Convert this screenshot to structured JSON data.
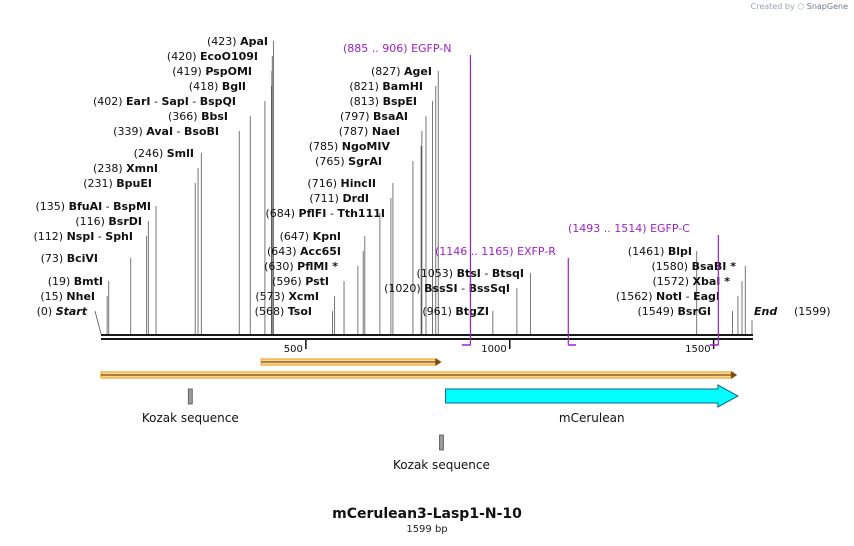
{
  "watermark": {
    "prefix": "Created by",
    "brand": "SnapGene"
  },
  "map_title": "mCerulean3-Lasp1-N-10",
  "map_size": "1599 bp",
  "sequence_length": 1599,
  "left_labels": [
    {
      "pos": "(423)",
      "name": "ApaI",
      "at": 423
    },
    {
      "pos": "(420)",
      "name": "EcoO109I",
      "at": 420
    },
    {
      "pos": "(419)",
      "name": "PspOMI",
      "at": 419
    },
    {
      "pos": "(418)",
      "name": "BglI",
      "at": 418
    },
    {
      "pos": "(402)",
      "name": "EarI",
      "name2": "SapI",
      "name3": "BspQI",
      "at": 402
    },
    {
      "pos": "(366)",
      "name": "BbsI",
      "at": 366
    },
    {
      "pos": "(339)",
      "name": "AvaI",
      "name2": "BsoBI",
      "at": 339
    },
    {
      "pos": "(246)",
      "name": "SmlI",
      "at": 246
    },
    {
      "pos": "(238)",
      "name": "XmnI",
      "at": 238
    },
    {
      "pos": "(231)",
      "name": "BpuEI",
      "at": 231
    },
    {
      "pos": "(135)",
      "name": "BfuAI",
      "name2": "BspMI",
      "at": 135
    },
    {
      "pos": "(116)",
      "name": "BsrDI",
      "at": 116
    },
    {
      "pos": "(112)",
      "name": "NspI",
      "name2": "SphI",
      "at": 112
    },
    {
      "pos": "(73)",
      "name": "BciVI",
      "at": 73
    },
    {
      "pos": "(19)",
      "name": "BmtI",
      "at": 19
    },
    {
      "pos": "(15)",
      "name": "NheI",
      "at": 15
    },
    {
      "pos": "(0)",
      "name": "Start",
      "at": 0
    }
  ],
  "middle_labels": [
    {
      "pos": "(684)",
      "name": "PflFI",
      "name2": "Tth111I",
      "at": 684
    },
    {
      "pos": "(647)",
      "name": "KpnI",
      "at": 647
    },
    {
      "pos": "(643)",
      "name": "Acc65I",
      "at": 643
    },
    {
      "pos": "(630)",
      "name": "PflMI",
      "star": "*",
      "at": 630
    },
    {
      "pos": "(596)",
      "name": "PstI",
      "at": 596
    },
    {
      "pos": "(573)",
      "name": "XcmI",
      "at": 573
    },
    {
      "pos": "(568)",
      "name": "TsoI",
      "at": 568
    }
  ],
  "center_labels": [
    {
      "pos": "(827)",
      "name": "AgeI",
      "at": 827
    },
    {
      "pos": "(821)",
      "name": "BamHI",
      "at": 821
    },
    {
      "pos": "(813)",
      "name": "BspEI",
      "at": 813
    },
    {
      "pos": "(797)",
      "name": "BsaAI",
      "at": 797
    },
    {
      "pos": "(787)",
      "name": "NaeI",
      "at": 787
    },
    {
      "pos": "(785)",
      "name": "NgoMIV",
      "at": 785
    },
    {
      "pos": "(765)",
      "name": "SgrAI",
      "at": 765
    },
    {
      "pos": "(716)",
      "name": "HincII",
      "at": 716
    },
    {
      "pos": "(711)",
      "name": "DrdI",
      "at": 711
    },
    {
      "pos": "(1053)",
      "name": "BtsI",
      "name2": "BtsqI",
      "at": 1053
    },
    {
      "pos": "(1020)",
      "name": "BssSI",
      "name2": "BssSqI",
      "at": 1020
    },
    {
      "pos": "(961)",
      "name": "BtgZI",
      "at": 961
    }
  ],
  "right_labels": [
    {
      "pos": "(1461)",
      "name": "BlpI",
      "at": 1461
    },
    {
      "pos": "(1580)",
      "name": "BsaBI",
      "star": "*",
      "at": 1580
    },
    {
      "pos": "(1572)",
      "name": "XbaI",
      "star": "*",
      "at": 1572
    },
    {
      "pos": "(1562)",
      "name": "NotI",
      "name2": "EagI",
      "at": 1562
    },
    {
      "pos": "(1549)",
      "name": "BsrGI",
      "at": 1549
    },
    {
      "pos": "(1599)",
      "name": "End",
      "at": 1599
    }
  ],
  "primers": [
    {
      "range": "(885 .. 906)",
      "name": "EGFP-N",
      "start": 885,
      "end": 906,
      "direction": "forward"
    },
    {
      "range": "(1146 .. 1165)",
      "name": "EXFP-R",
      "start": 1146,
      "end": 1165,
      "direction": "reverse"
    },
    {
      "range": "(1493 .. 1514)",
      "name": "EGFP-C",
      "start": 1493,
      "end": 1514,
      "direction": "forward"
    }
  ],
  "ruler_ticks": [
    "500",
    "1000",
    "1500"
  ],
  "features": [
    {
      "name": "Kozak sequence",
      "start": 219,
      "end": 228,
      "type": "regulatory"
    },
    {
      "name": "mCerulean",
      "start": 845,
      "end": 1562,
      "type": "cds"
    },
    {
      "name": "Kozak sequence",
      "start": 835,
      "end": 844,
      "type": "regulatory"
    },
    {
      "name": "ORF1",
      "label": "",
      "start": 0,
      "end": 1560,
      "type": "orf"
    },
    {
      "name": "ORF2",
      "label": "",
      "start": 393,
      "end": 835,
      "type": "orf"
    }
  ],
  "colors": {
    "primer": "#a020c8",
    "cds": "#00ffff",
    "orf": "#f5a623",
    "backbone": "#1a1a1a",
    "line": "#555555"
  }
}
